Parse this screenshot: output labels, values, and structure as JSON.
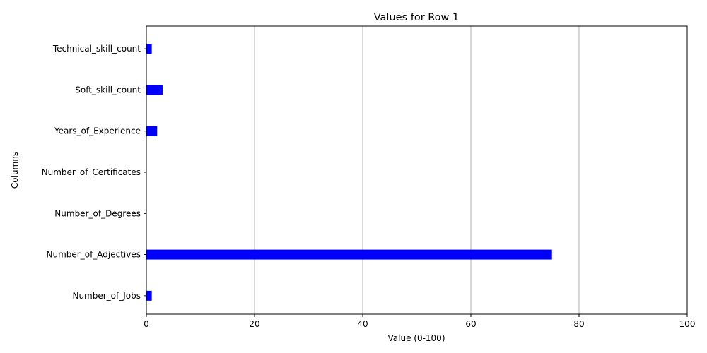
{
  "chart_data": {
    "type": "bar",
    "orientation": "horizontal",
    "title": "Values for Row 1",
    "xlabel": "Value (0-100)",
    "ylabel": "Columns",
    "xlim": [
      0,
      100
    ],
    "xticks": [
      0,
      20,
      40,
      60,
      80,
      100
    ],
    "grid": "x",
    "bar_color": "#0000ff",
    "categories": [
      "Number_of_Jobs",
      "Number_of_Adjectives",
      "Number_of_Degrees",
      "Number_of_Certificates",
      "Years_of_Experience",
      "Soft_skill_count",
      "Technical_skill_count"
    ],
    "values": [
      1,
      75,
      0,
      0,
      2,
      3,
      1
    ]
  }
}
